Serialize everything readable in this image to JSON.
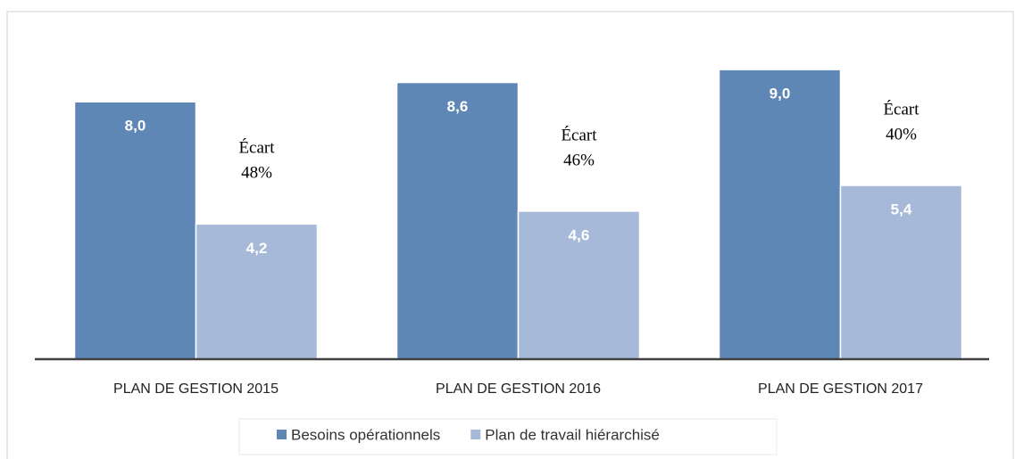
{
  "chart_data": {
    "type": "bar",
    "categories": [
      "PLAN DE GESTION 2015",
      "PLAN DE GESTION 2016",
      "PLAN DE GESTION 2017"
    ],
    "series": [
      {
        "name": "Besoins opérationnels",
        "color": "#5f87b6",
        "values": [
          8.0,
          8.6,
          9.0
        ],
        "value_labels": [
          "8,0",
          "8,6",
          "9,0"
        ]
      },
      {
        "name": "Plan de travail hiérarchisé",
        "color": "#a6b9d9",
        "values": [
          4.2,
          4.6,
          5.4
        ],
        "value_labels": [
          "4,2",
          "4,6",
          "5,4"
        ]
      }
    ],
    "annotations": [
      [
        "Écart",
        "48%"
      ],
      [
        "Écart",
        "46%"
      ],
      [
        "Écart",
        "40%"
      ]
    ],
    "ylim": [
      0,
      10
    ]
  }
}
